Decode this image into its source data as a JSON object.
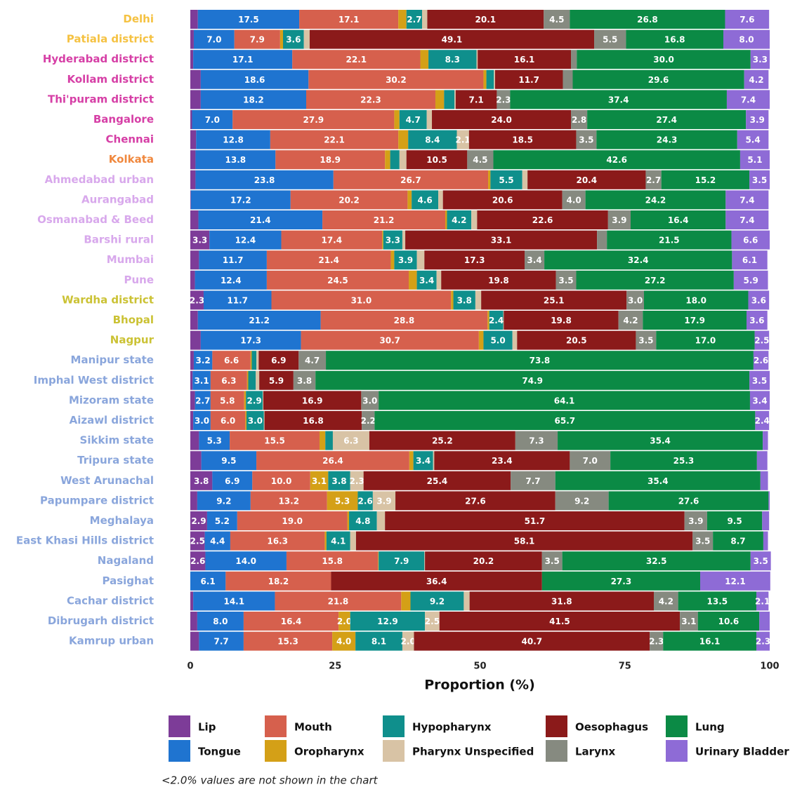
{
  "chart_data": {
    "type": "stacked-bar-horizontal",
    "x_label": "Proportion (%)",
    "note": "<2.0% values are not shown in the chart",
    "xlim": [
      0,
      100
    ],
    "xticks": [
      0,
      25,
      50,
      75,
      100
    ],
    "categories": [
      "Delhi",
      "Patiala district",
      "Hyderabad district",
      "Kollam district",
      "Thi'puram district",
      "Bangalore",
      "Chennai",
      "Kolkata",
      "Ahmedabad urban",
      "Aurangabad",
      "Osmanabad & Beed",
      "Barshi rural",
      "Mumbai",
      "Pune",
      "Wardha district",
      "Bhopal",
      "Nagpur",
      "Manipur state",
      "Imphal West district",
      "Mizoram state",
      "Aizawl district",
      "Sikkim state",
      "Tripura state",
      "West Arunachal",
      "Papumpare district",
      "Meghalaya",
      "East Khasi Hills district",
      "Nagaland",
      "Pasighat",
      "Cachar district",
      "Dibrugarh district",
      "Kamrup urban"
    ],
    "category_colors": [
      "#f5c242",
      "#f5c242",
      "#d63fa6",
      "#d63fa6",
      "#d63fa6",
      "#d63fa6",
      "#d63fa6",
      "#f0883e",
      "#d8a8ec",
      "#d8a8ec",
      "#d8a8ec",
      "#d8a8ec",
      "#d8a8ec",
      "#d8a8ec",
      "#cbc234",
      "#cbc234",
      "#cbc234",
      "#8aa6dc",
      "#8aa6dc",
      "#8aa6dc",
      "#8aa6dc",
      "#8aa6dc",
      "#8aa6dc",
      "#8aa6dc",
      "#8aa6dc",
      "#8aa6dc",
      "#8aa6dc",
      "#8aa6dc",
      "#8aa6dc",
      "#8aa6dc",
      "#8aa6dc",
      "#8aa6dc"
    ],
    "series": [
      {
        "name": "Lip",
        "color": "#7d3c98",
        "values": [
          1.3,
          0.6,
          0.5,
          1.8,
          1.8,
          0.3,
          1.0,
          0.9,
          0.9,
          0.1,
          1.4,
          3.3,
          1.5,
          0.8,
          2.3,
          1.3,
          1.8,
          0.6,
          0.4,
          0.8,
          0.5,
          1.5,
          1.9,
          3.8,
          1.2,
          2.9,
          2.5,
          2.6,
          0,
          0.5,
          1.2,
          1.5
        ],
        "value_labels": [
          null,
          null,
          null,
          null,
          null,
          null,
          null,
          null,
          null,
          null,
          null,
          "3.3",
          null,
          null,
          "2.3",
          null,
          null,
          null,
          null,
          null,
          null,
          null,
          null,
          "3.8",
          null,
          "2.9",
          "2.5",
          "2.6",
          null,
          null,
          null,
          null
        ]
      },
      {
        "name": "Tongue",
        "color": "#1f74d0",
        "values": [
          17.5,
          7.0,
          17.1,
          18.6,
          18.2,
          7.0,
          12.8,
          13.8,
          23.8,
          17.2,
          21.4,
          12.4,
          11.7,
          12.4,
          11.7,
          21.2,
          17.3,
          3.2,
          3.1,
          2.7,
          3.0,
          5.3,
          9.5,
          6.9,
          9.2,
          5.2,
          4.4,
          14.0,
          6.1,
          14.1,
          8.0,
          7.7
        ],
        "value_labels": [
          "17.5",
          "7.0",
          "17.1",
          "18.6",
          "18.2",
          "7.0",
          "12.8",
          "13.8",
          "23.8",
          "17.2",
          "21.4",
          "12.4",
          "11.7",
          "12.4",
          "11.7",
          "21.2",
          "17.3",
          "3.2",
          "3.1",
          "2.7",
          "3.0",
          "5.3",
          "9.5",
          "6.9",
          "9.2",
          "5.2",
          "4.4",
          "14.0",
          "6.1",
          "14.1",
          "8.0",
          "7.7"
        ]
      },
      {
        "name": "Mouth",
        "color": "#d6604d",
        "values": [
          17.1,
          7.9,
          22.1,
          30.2,
          22.3,
          27.9,
          22.1,
          18.9,
          26.7,
          20.2,
          21.2,
          17.4,
          21.4,
          24.5,
          31.0,
          28.8,
          30.7,
          6.6,
          6.3,
          5.8,
          6.0,
          15.5,
          26.4,
          10.0,
          13.2,
          19.0,
          16.3,
          15.8,
          18.2,
          21.8,
          16.4,
          15.3
        ],
        "value_labels": [
          "17.1",
          "7.9",
          "22.1",
          "30.2",
          "22.3",
          "27.9",
          "22.1",
          "18.9",
          "26.7",
          "20.2",
          "21.2",
          "17.4",
          "21.4",
          "24.5",
          "31.0",
          "28.8",
          "30.7",
          "6.6",
          "6.3",
          "5.8",
          "6.0",
          "15.5",
          "26.4",
          "10.0",
          "13.2",
          "19.0",
          "16.3",
          "15.8",
          "18.2",
          "21.8",
          "16.4",
          "15.3"
        ]
      },
      {
        "name": "Oropharynx",
        "color": "#d4a017",
        "values": [
          1.4,
          0.5,
          1.4,
          0.5,
          1.5,
          0.9,
          1.7,
          0.9,
          0.4,
          0.7,
          0.3,
          0.2,
          0.6,
          1.4,
          0.4,
          0.3,
          0.8,
          0.2,
          0.2,
          0.3,
          0.2,
          1.0,
          0.7,
          3.1,
          5.3,
          0.3,
          0.3,
          0.1,
          0,
          1.6,
          2.0,
          4.0
        ],
        "value_labels": [
          null,
          null,
          null,
          null,
          null,
          null,
          null,
          null,
          null,
          null,
          null,
          null,
          null,
          null,
          null,
          null,
          null,
          null,
          null,
          null,
          null,
          null,
          null,
          "3.1",
          "5.3",
          null,
          null,
          null,
          null,
          null,
          "2.0",
          "4.0"
        ]
      },
      {
        "name": "Hypopharynx",
        "color": "#0f8f8c",
        "values": [
          2.7,
          3.6,
          8.3,
          1.3,
          1.8,
          4.7,
          8.4,
          1.6,
          5.5,
          4.6,
          4.2,
          3.3,
          3.9,
          3.4,
          3.8,
          2.4,
          5.0,
          0.8,
          1.3,
          2.9,
          3.0,
          1.3,
          3.4,
          3.8,
          2.6,
          4.8,
          4.1,
          7.9,
          0,
          9.2,
          12.9,
          8.1
        ],
        "value_labels": [
          "2.7",
          "3.6",
          "8.3",
          null,
          null,
          "4.7",
          "8.4",
          null,
          "5.5",
          "4.6",
          "4.2",
          "3.3",
          "3.9",
          "3.4",
          "3.8",
          "2.4",
          "5.0",
          null,
          null,
          "2.9",
          "3.0",
          null,
          "3.4",
          "3.8",
          "2.6",
          "4.8",
          "4.1",
          "7.9",
          null,
          "9.2",
          "12.9",
          "8.1"
        ]
      },
      {
        "name": "Pharynx Unspecified",
        "color": "#d8c3a5",
        "values": [
          0.9,
          1.0,
          0.2,
          0.2,
          0.2,
          0.9,
          2.1,
          1.2,
          0.9,
          0.8,
          1.0,
          0.5,
          1.3,
          0.8,
          1.0,
          0.1,
          0.8,
          0.4,
          0.6,
          0.1,
          0.1,
          6.3,
          0.2,
          2.3,
          3.9,
          1.4,
          1.0,
          0.1,
          0,
          1.0,
          2.5,
          2.0
        ],
        "value_labels": [
          null,
          null,
          null,
          null,
          null,
          null,
          "2.1",
          null,
          null,
          null,
          null,
          null,
          null,
          null,
          null,
          null,
          null,
          null,
          null,
          null,
          null,
          "6.3",
          null,
          "2.3",
          "3.9",
          null,
          null,
          null,
          null,
          null,
          "2.5",
          "2.0"
        ]
      },
      {
        "name": "Oesophagus",
        "color": "#8b1a1a",
        "values": [
          20.1,
          49.1,
          16.1,
          11.7,
          7.1,
          24.0,
          18.5,
          10.5,
          20.4,
          20.6,
          22.6,
          33.1,
          17.3,
          19.8,
          25.1,
          19.8,
          20.5,
          6.9,
          5.9,
          16.9,
          16.8,
          25.2,
          23.4,
          25.4,
          27.6,
          51.7,
          58.1,
          20.2,
          36.4,
          31.8,
          41.5,
          40.7
        ],
        "value_labels": [
          "20.1",
          "49.1",
          "16.1",
          "11.7",
          "7.1",
          "24.0",
          "18.5",
          "10.5",
          "20.4",
          "20.6",
          "22.6",
          "33.1",
          "17.3",
          "19.8",
          "25.1",
          "19.8",
          "20.5",
          "6.9",
          "5.9",
          "16.9",
          "16.8",
          "25.2",
          "23.4",
          "25.4",
          "27.6",
          "51.7",
          "58.1",
          "20.2",
          "36.4",
          "31.8",
          "41.5",
          "40.7"
        ]
      },
      {
        "name": "Larynx",
        "color": "#868a80",
        "values": [
          4.5,
          5.5,
          1.0,
          1.7,
          2.3,
          2.8,
          3.5,
          4.5,
          2.7,
          4.0,
          3.9,
          1.7,
          3.4,
          3.5,
          3.0,
          4.2,
          3.5,
          4.7,
          3.8,
          3.0,
          2.2,
          7.3,
          7.0,
          7.7,
          9.2,
          3.9,
          3.5,
          3.5,
          0,
          4.2,
          3.1,
          2.3
        ],
        "value_labels": [
          "4.5",
          "5.5",
          null,
          null,
          "2.3",
          "2.8",
          "3.5",
          "4.5",
          "2.7",
          "4.0",
          "3.9",
          null,
          "3.4",
          "3.5",
          "3.0",
          "4.2",
          "3.5",
          "4.7",
          "3.8",
          "3.0",
          "2.2",
          "7.3",
          "7.0",
          "7.7",
          "9.2",
          "3.9",
          "3.5",
          "3.5",
          null,
          "4.2",
          "3.1",
          "2.3"
        ]
      },
      {
        "name": "Lung",
        "color": "#0b8a45",
        "values": [
          26.8,
          16.8,
          30.0,
          29.6,
          37.4,
          27.4,
          24.3,
          42.6,
          15.2,
          24.2,
          16.4,
          21.5,
          32.4,
          27.2,
          18.0,
          17.9,
          17.0,
          73.8,
          74.9,
          64.1,
          65.7,
          35.4,
          25.3,
          35.4,
          27.6,
          9.5,
          8.7,
          32.5,
          27.3,
          13.5,
          10.6,
          16.1
        ],
        "value_labels": [
          "26.8",
          "16.8",
          "30.0",
          "29.6",
          "37.4",
          "27.4",
          "24.3",
          "42.6",
          "15.2",
          "24.2",
          "16.4",
          "21.5",
          "32.4",
          "27.2",
          "18.0",
          "17.9",
          "17.0",
          "73.8",
          "74.9",
          "64.1",
          "65.7",
          "35.4",
          "25.3",
          "35.4",
          "27.6",
          "9.5",
          "8.7",
          "32.5",
          "27.3",
          "13.5",
          "10.6",
          "16.1"
        ]
      },
      {
        "name": "Urinary Bladder",
        "color": "#8e6bd6",
        "values": [
          7.6,
          8.0,
          3.3,
          4.2,
          7.4,
          3.9,
          5.4,
          5.1,
          3.5,
          7.4,
          7.4,
          6.6,
          6.1,
          5.9,
          3.6,
          3.6,
          2.5,
          2.6,
          3.5,
          3.4,
          2.4,
          0.9,
          1.8,
          1.3,
          0.2,
          1.2,
          0.8,
          3.5,
          12.1,
          2.1,
          1.8,
          2.3
        ],
        "value_labels": [
          "7.6",
          "8.0",
          "3.3",
          "4.2",
          "7.4",
          "3.9",
          "5.4",
          "5.1",
          "3.5",
          "7.4",
          "7.4",
          "6.6",
          "6.1",
          "5.9",
          "3.6",
          "3.6",
          "2.5",
          "2.6",
          "3.5",
          "3.4",
          "2.4",
          null,
          null,
          null,
          null,
          null,
          null,
          "3.5",
          "12.1",
          "2.1",
          null,
          "2.3"
        ]
      }
    ]
  }
}
